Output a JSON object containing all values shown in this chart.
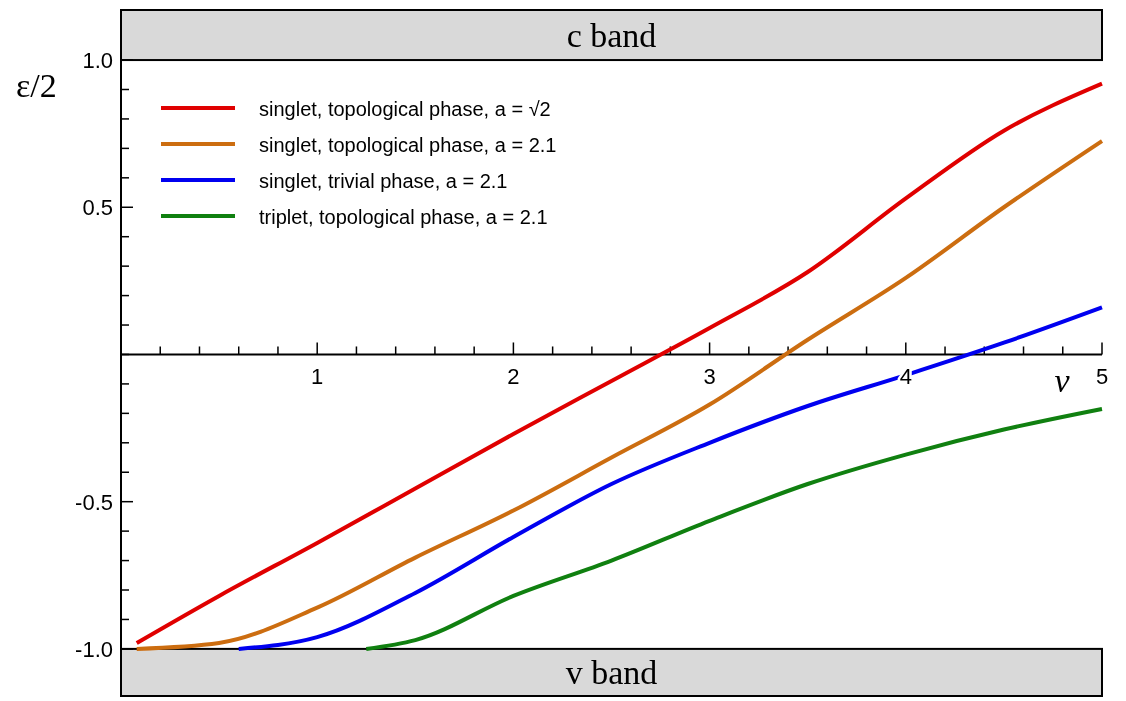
{
  "chart_data": {
    "type": "line",
    "xlabel": "v",
    "ylabel": "ε/2",
    "xlim": [
      0,
      5
    ],
    "ylim": [
      -1.16,
      1.17
    ],
    "xticks": [
      {
        "value": 0.2,
        "label": null
      },
      {
        "value": 0.4,
        "label": null
      },
      {
        "value": 0.6,
        "label": null
      },
      {
        "value": 0.8,
        "label": null
      },
      1,
      {
        "value": 1.2,
        "label": null
      },
      {
        "value": 1.4,
        "label": null
      },
      {
        "value": 1.6,
        "label": null
      },
      {
        "value": 1.8,
        "label": null
      },
      2,
      {
        "value": 2.2,
        "label": null
      },
      {
        "value": 2.4,
        "label": null
      },
      {
        "value": 2.6,
        "label": null
      },
      {
        "value": 2.8,
        "label": null
      },
      3,
      {
        "value": 3.2,
        "label": null
      },
      {
        "value": 3.4,
        "label": null
      },
      {
        "value": 3.6,
        "label": null
      },
      {
        "value": 3.8,
        "label": null
      },
      4,
      {
        "value": 4.2,
        "label": null
      },
      {
        "value": 4.4,
        "label": null
      },
      {
        "value": 4.6,
        "label": null
      },
      {
        "value": 4.8,
        "label": null
      },
      5
    ],
    "yticks": [
      {
        "value": -1,
        "label": "-1.0"
      },
      {
        "value": -0.9,
        "label": null
      },
      {
        "value": -0.8,
        "label": null
      },
      {
        "value": -0.7,
        "label": null
      },
      {
        "value": -0.6,
        "label": null
      },
      {
        "value": -0.5,
        "label": "-0.5"
      },
      {
        "value": -0.4,
        "label": null
      },
      {
        "value": -0.3,
        "label": null
      },
      {
        "value": -0.2,
        "label": null
      },
      {
        "value": -0.1,
        "label": null
      },
      {
        "value": 0,
        "label": null
      },
      {
        "value": 0.1,
        "label": null
      },
      {
        "value": 0.2,
        "label": null
      },
      {
        "value": 0.3,
        "label": null
      },
      {
        "value": 0.4,
        "label": null
      },
      {
        "value": 0.5,
        "label": "0.5"
      },
      {
        "value": 0.6,
        "label": null
      },
      {
        "value": 0.7,
        "label": null
      },
      {
        "value": 0.8,
        "label": null
      },
      {
        "value": 0.9,
        "label": null
      },
      {
        "value": 1,
        "label": "1.0"
      }
    ],
    "legend": "top left",
    "grid": false,
    "line_style": "solid",
    "marker": "none",
    "bands": [
      {
        "axis": "y",
        "from": 1,
        "to": 1.17,
        "label": "c band",
        "color": "#d9d9d9"
      },
      {
        "axis": "y",
        "from": -1.16,
        "to": -1,
        "label": "v band",
        "color": "#d9d9d9"
      }
    ],
    "series": [
      {
        "name": "singlet, topological phase, a = √2",
        "color": "#e00000",
        "x": [
          0.08,
          0.5,
          1,
          1.5,
          2,
          2.5,
          3,
          3.5,
          4,
          4.5,
          5
        ],
        "values": [
          -0.98,
          -0.82,
          -0.64,
          -0.455,
          -0.27,
          -0.09,
          0.09,
          0.28,
          0.53,
          0.76,
          0.92
        ]
      },
      {
        "name": "singlet, topological phase, a = 2.1",
        "color": "#cc6d10",
        "x": [
          0.08,
          0.5,
          1,
          1.5,
          2,
          2.5,
          3,
          3.5,
          4,
          4.5,
          5
        ],
        "values": [
          -1,
          -0.98,
          -0.86,
          -0.69,
          -0.53,
          -0.35,
          -0.17,
          0.05,
          0.26,
          0.5,
          0.725
        ]
      },
      {
        "name": "singlet, trivial phase, a = 2.1",
        "color": "#0000f0",
        "x": [
          0.6,
          1,
          1.5,
          2,
          2.5,
          3,
          3.5,
          4,
          4.5,
          5
        ],
        "values": [
          -1,
          -0.96,
          -0.81,
          -0.62,
          -0.44,
          -0.3,
          -0.175,
          -0.07,
          0.04,
          0.16
        ]
      },
      {
        "name": "triplet, topological phase, a = 2.1",
        "color": "#108010",
        "x": [
          1.25,
          1.5,
          2,
          2.5,
          3,
          3.5,
          4,
          4.5,
          5
        ],
        "values": [
          -1,
          -0.97,
          -0.82,
          -0.7,
          -0.565,
          -0.44,
          -0.34,
          -0.255,
          -0.185
        ]
      }
    ]
  }
}
